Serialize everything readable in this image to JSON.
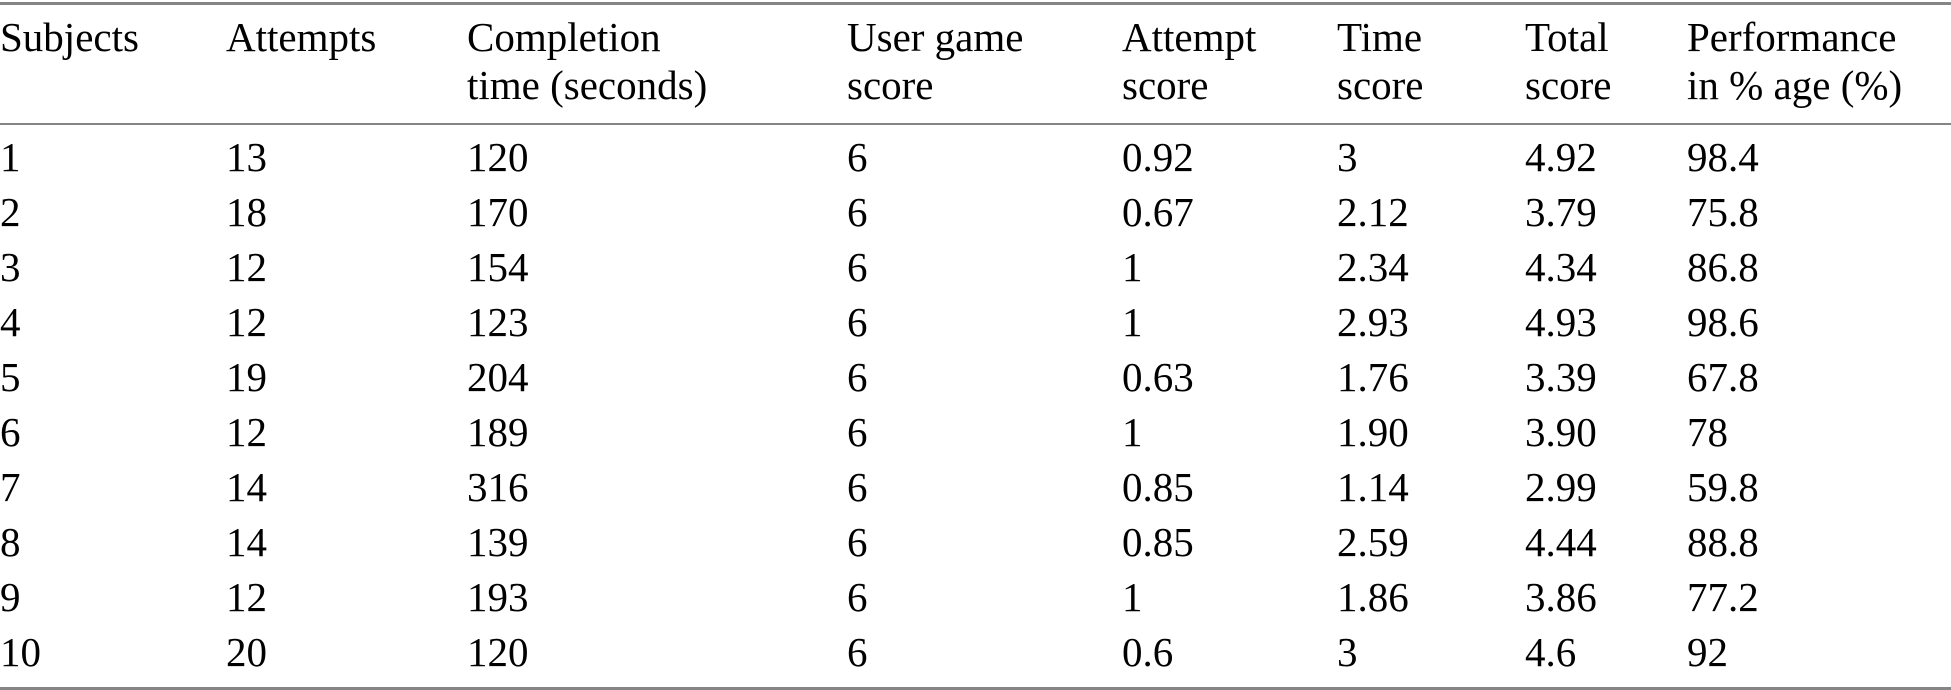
{
  "colors": {
    "background": "#ffffff",
    "text": "#000000",
    "rule": "#858585"
  },
  "table": {
    "columns": [
      {
        "label": "Subjects",
        "line1": "Subjects",
        "line2": ""
      },
      {
        "label": "Attempts",
        "line1": "Attempts",
        "line2": ""
      },
      {
        "label": "Completion time (seconds)",
        "line1": "Completion",
        "line2": "time (seconds)"
      },
      {
        "label": "User game score",
        "line1": "User game",
        "line2": "score"
      },
      {
        "label": "Attempt score",
        "line1": "Attempt",
        "line2": "score"
      },
      {
        "label": "Time score",
        "line1": "Time",
        "line2": "score"
      },
      {
        "label": "Total score",
        "line1": "Total",
        "line2": "score"
      },
      {
        "label": "Performance in % age (%)",
        "line1": "Performance",
        "line2": "in % age (%)"
      }
    ],
    "rows": [
      [
        "1",
        "13",
        "120",
        "6",
        "0.92",
        "3",
        "4.92",
        "98.4"
      ],
      [
        "2",
        "18",
        "170",
        "6",
        "0.67",
        "2.12",
        "3.79",
        "75.8"
      ],
      [
        "3",
        "12",
        "154",
        "6",
        "1",
        "2.34",
        "4.34",
        "86.8"
      ],
      [
        "4",
        "12",
        "123",
        "6",
        "1",
        "2.93",
        "4.93",
        "98.6"
      ],
      [
        "5",
        "19",
        "204",
        "6",
        "0.63",
        "1.76",
        "3.39",
        "67.8"
      ],
      [
        "6",
        "12",
        "189",
        "6",
        "1",
        "1.90",
        "3.90",
        "78"
      ],
      [
        "7",
        "14",
        "316",
        "6",
        "0.85",
        "1.14",
        "2.99",
        "59.8"
      ],
      [
        "8",
        "14",
        "139",
        "6",
        "0.85",
        "2.59",
        "4.44",
        "88.8"
      ],
      [
        "9",
        "12",
        "193",
        "6",
        "1",
        "1.86",
        "3.86",
        "77.2"
      ],
      [
        "10",
        "20",
        "120",
        "6",
        "0.6",
        "3",
        "4.6",
        "92"
      ]
    ]
  }
}
